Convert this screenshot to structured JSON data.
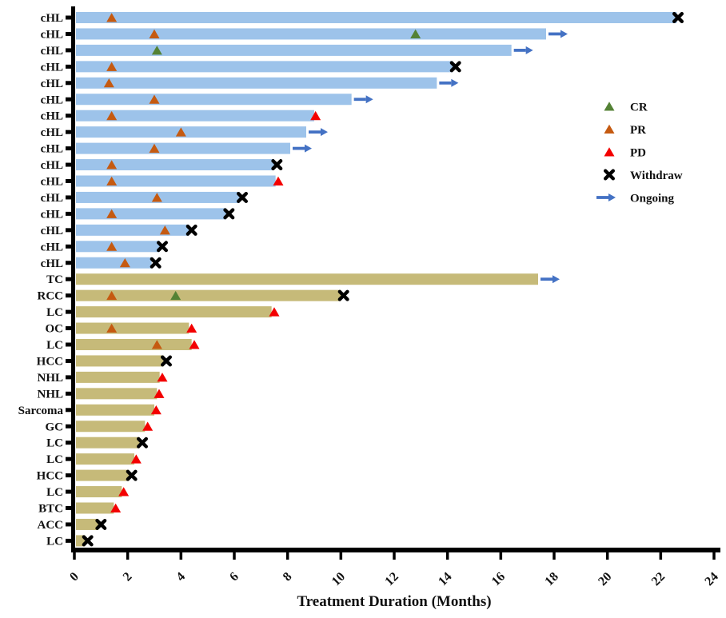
{
  "figure": {
    "xlabel": "Treatment Duration (Months)"
  },
  "chart_data": {
    "type": "bar",
    "subtype": "swimmer-plot",
    "orientation": "horizontal",
    "title": "",
    "xlabel": "Treatment Duration (Months)",
    "ylabel": "",
    "xlim": [
      0,
      24
    ],
    "xticks": [
      0,
      2,
      4,
      6,
      8,
      10,
      12,
      14,
      16,
      18,
      20,
      22,
      24
    ],
    "grid": false,
    "legend_position": "right-center",
    "legend": [
      {
        "label": "CR",
        "marker": "triangle",
        "color_key": "cr"
      },
      {
        "label": "PR",
        "marker": "triangle",
        "color_key": "pr"
      },
      {
        "label": "PD",
        "marker": "triangle",
        "color_key": "pd"
      },
      {
        "label": "Withdraw",
        "marker": "cross",
        "color_key": "withdraw"
      },
      {
        "label": "Ongoing",
        "marker": "arrow",
        "color_key": "ongoing"
      }
    ],
    "colors": {
      "bar_chl": "#9dc3ea",
      "bar_other": "#c6ba79",
      "cr": "#548235",
      "pr": "#c55a11",
      "pd": "#f30000",
      "withdraw": "#000000",
      "ongoing": "#4472c4",
      "axis": "#000000"
    },
    "rows": [
      {
        "label": "cHL",
        "cohort": "cHL",
        "duration": 22.6,
        "ongoing": false,
        "markers": [
          {
            "type": "PR",
            "x": 1.4
          },
          {
            "type": "Withdraw",
            "x": 22.65
          }
        ]
      },
      {
        "label": "cHL",
        "cohort": "cHL",
        "duration": 17.7,
        "ongoing": true,
        "markers": [
          {
            "type": "PR",
            "x": 3.0
          },
          {
            "type": "CR",
            "x": 12.8
          }
        ]
      },
      {
        "label": "cHL",
        "cohort": "cHL",
        "duration": 16.4,
        "ongoing": true,
        "markers": [
          {
            "type": "CR",
            "x": 3.1
          }
        ]
      },
      {
        "label": "cHL",
        "cohort": "cHL",
        "duration": 14.2,
        "ongoing": false,
        "markers": [
          {
            "type": "PR",
            "x": 1.4
          },
          {
            "type": "Withdraw",
            "x": 14.3
          }
        ]
      },
      {
        "label": "cHL",
        "cohort": "cHL",
        "duration": 13.6,
        "ongoing": true,
        "markers": [
          {
            "type": "PR",
            "x": 1.3
          }
        ]
      },
      {
        "label": "cHL",
        "cohort": "cHL",
        "duration": 10.4,
        "ongoing": true,
        "markers": [
          {
            "type": "PR",
            "x": 3.0
          }
        ]
      },
      {
        "label": "cHL",
        "cohort": "cHL",
        "duration": 9.0,
        "ongoing": false,
        "markers": [
          {
            "type": "PR",
            "x": 1.4
          },
          {
            "type": "PD",
            "x": 9.05
          }
        ]
      },
      {
        "label": "cHL",
        "cohort": "cHL",
        "duration": 8.7,
        "ongoing": true,
        "markers": [
          {
            "type": "PR",
            "x": 4.0
          }
        ]
      },
      {
        "label": "cHL",
        "cohort": "cHL",
        "duration": 8.1,
        "ongoing": true,
        "markers": [
          {
            "type": "PR",
            "x": 3.0
          }
        ]
      },
      {
        "label": "cHL",
        "cohort": "cHL",
        "duration": 7.5,
        "ongoing": false,
        "markers": [
          {
            "type": "PR",
            "x": 1.4
          },
          {
            "type": "Withdraw",
            "x": 7.6
          }
        ]
      },
      {
        "label": "cHL",
        "cohort": "cHL",
        "duration": 7.55,
        "ongoing": false,
        "markers": [
          {
            "type": "PR",
            "x": 1.4
          },
          {
            "type": "PD",
            "x": 7.65
          }
        ]
      },
      {
        "label": "cHL",
        "cohort": "cHL",
        "duration": 6.2,
        "ongoing": false,
        "markers": [
          {
            "type": "PR",
            "x": 3.1
          },
          {
            "type": "Withdraw",
            "x": 6.3
          }
        ]
      },
      {
        "label": "cHL",
        "cohort": "cHL",
        "duration": 5.7,
        "ongoing": false,
        "markers": [
          {
            "type": "PR",
            "x": 1.4
          },
          {
            "type": "Withdraw",
            "x": 5.8
          }
        ]
      },
      {
        "label": "cHL",
        "cohort": "cHL",
        "duration": 4.3,
        "ongoing": false,
        "markers": [
          {
            "type": "PR",
            "x": 3.4
          },
          {
            "type": "Withdraw",
            "x": 4.4
          }
        ]
      },
      {
        "label": "cHL",
        "cohort": "cHL",
        "duration": 3.2,
        "ongoing": false,
        "markers": [
          {
            "type": "PR",
            "x": 1.4
          },
          {
            "type": "Withdraw",
            "x": 3.3
          }
        ]
      },
      {
        "label": "cHL",
        "cohort": "cHL",
        "duration": 2.9,
        "ongoing": false,
        "markers": [
          {
            "type": "PR",
            "x": 1.9
          },
          {
            "type": "Withdraw",
            "x": 3.05
          }
        ]
      },
      {
        "label": "TC",
        "cohort": "other",
        "duration": 17.4,
        "ongoing": true,
        "markers": []
      },
      {
        "label": "RCC",
        "cohort": "other",
        "duration": 10.0,
        "ongoing": false,
        "markers": [
          {
            "type": "PR",
            "x": 1.4
          },
          {
            "type": "CR",
            "x": 3.8
          },
          {
            "type": "Withdraw",
            "x": 10.1
          }
        ]
      },
      {
        "label": "LC",
        "cohort": "other",
        "duration": 7.4,
        "ongoing": false,
        "markers": [
          {
            "type": "PD",
            "x": 7.5
          }
        ]
      },
      {
        "label": "OC",
        "cohort": "other",
        "duration": 4.3,
        "ongoing": false,
        "markers": [
          {
            "type": "PR",
            "x": 1.4
          },
          {
            "type": "PD",
            "x": 4.4
          }
        ]
      },
      {
        "label": "LC",
        "cohort": "other",
        "duration": 4.4,
        "ongoing": false,
        "markers": [
          {
            "type": "PR",
            "x": 3.1
          },
          {
            "type": "PD",
            "x": 4.5
          }
        ]
      },
      {
        "label": "HCC",
        "cohort": "other",
        "duration": 3.35,
        "ongoing": false,
        "markers": [
          {
            "type": "Withdraw",
            "x": 3.45
          }
        ]
      },
      {
        "label": "NHL",
        "cohort": "other",
        "duration": 3.2,
        "ongoing": false,
        "markers": [
          {
            "type": "PD",
            "x": 3.3
          }
        ]
      },
      {
        "label": "NHL",
        "cohort": "other",
        "duration": 3.1,
        "ongoing": false,
        "markers": [
          {
            "type": "PD",
            "x": 3.18
          }
        ]
      },
      {
        "label": "Sarcoma",
        "cohort": "other",
        "duration": 3.0,
        "ongoing": false,
        "markers": [
          {
            "type": "PD",
            "x": 3.07
          }
        ]
      },
      {
        "label": "GC",
        "cohort": "other",
        "duration": 2.65,
        "ongoing": false,
        "markers": [
          {
            "type": "PD",
            "x": 2.75
          }
        ]
      },
      {
        "label": "LC",
        "cohort": "other",
        "duration": 2.45,
        "ongoing": false,
        "markers": [
          {
            "type": "Withdraw",
            "x": 2.55
          }
        ]
      },
      {
        "label": "LC",
        "cohort": "other",
        "duration": 2.25,
        "ongoing": false,
        "markers": [
          {
            "type": "PD",
            "x": 2.32
          }
        ]
      },
      {
        "label": "HCC",
        "cohort": "other",
        "duration": 2.05,
        "ongoing": false,
        "markers": [
          {
            "type": "Withdraw",
            "x": 2.15
          }
        ]
      },
      {
        "label": "LC",
        "cohort": "other",
        "duration": 1.78,
        "ongoing": false,
        "markers": [
          {
            "type": "PD",
            "x": 1.85
          }
        ]
      },
      {
        "label": "BTC",
        "cohort": "other",
        "duration": 1.48,
        "ongoing": false,
        "markers": [
          {
            "type": "PD",
            "x": 1.55
          }
        ]
      },
      {
        "label": "ACC",
        "cohort": "other",
        "duration": 0.9,
        "ongoing": false,
        "markers": [
          {
            "type": "Withdraw",
            "x": 1.0
          }
        ]
      },
      {
        "label": "LC",
        "cohort": "other",
        "duration": 0.4,
        "ongoing": false,
        "markers": [
          {
            "type": "Withdraw",
            "x": 0.5
          }
        ]
      }
    ]
  }
}
